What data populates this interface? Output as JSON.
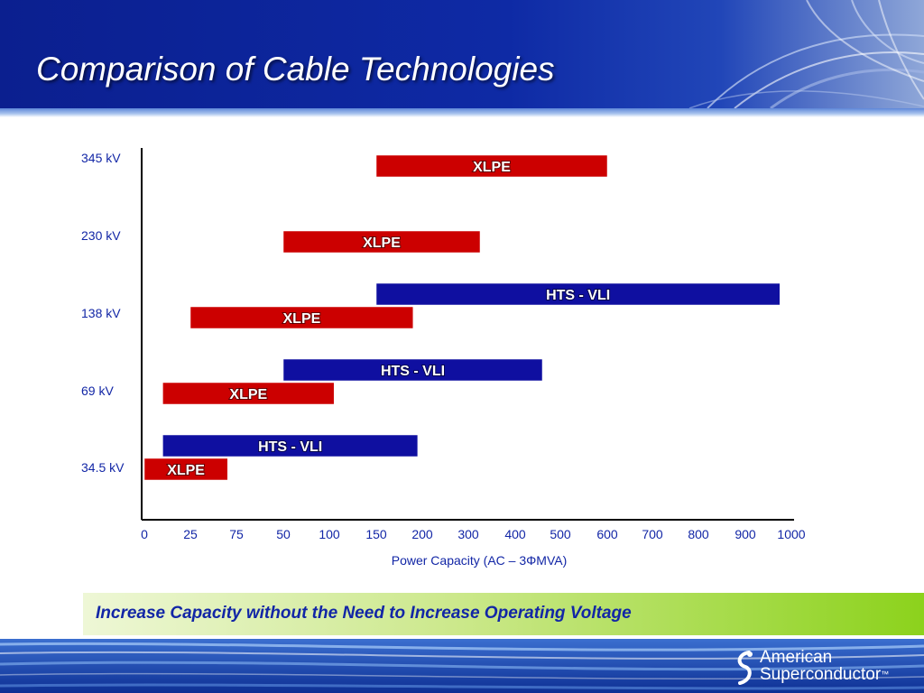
{
  "slide": {
    "title": "Comparison of Cable Technologies",
    "banner_text": "Increase Capacity without the Need to Increase Operating Voltage",
    "logo": {
      "line1": "American",
      "line2": "Superconductor",
      "mark": "™",
      "icon": "swirl-logo-icon"
    }
  },
  "colors": {
    "xlpe": "#cc0000",
    "hts": "#0f0fa0",
    "axis_labels": "#1226a6"
  },
  "chart_data": {
    "type": "bar",
    "orientation": "horizontal-range",
    "title": "",
    "xlabel": "Power Capacity (AC – 3ΦMVA)",
    "ylabel": "",
    "x_ticks": [
      "0",
      "25",
      "75",
      "50",
      "100",
      "150",
      "200",
      "300",
      "400",
      "500",
      "600",
      "700",
      "800",
      "900",
      "1000"
    ],
    "categories": [
      "345 kV",
      "230 kV",
      "138 kV",
      "69 kV",
      "34.5 kV"
    ],
    "bars": [
      {
        "category": "345 kV",
        "label": "XLPE",
        "series": "XLPE",
        "start": 150,
        "end": 600
      },
      {
        "category": "230 kV",
        "label": "XLPE",
        "series": "XLPE",
        "start": 50,
        "end": 325
      },
      {
        "category": "138 kV",
        "label": "HTS - VLI",
        "series": "HTS - VLI",
        "start": 150,
        "end": 975
      },
      {
        "category": "138 kV",
        "label": "XLPE",
        "series": "XLPE",
        "start": 25,
        "end": 190
      },
      {
        "category": "69 kV",
        "label": "HTS - VLI",
        "series": "HTS - VLI",
        "start": 50,
        "end": 460
      },
      {
        "category": "69 kV",
        "label": "XLPE",
        "series": "XLPE",
        "start": 10,
        "end": 105
      },
      {
        "category": "34.5 kV",
        "label": "HTS - VLI",
        "series": "HTS - VLI",
        "start": 10,
        "end": 195
      },
      {
        "category": "34.5 kV",
        "label": "XLPE",
        "series": "XLPE",
        "start": 0,
        "end": 35
      }
    ]
  }
}
